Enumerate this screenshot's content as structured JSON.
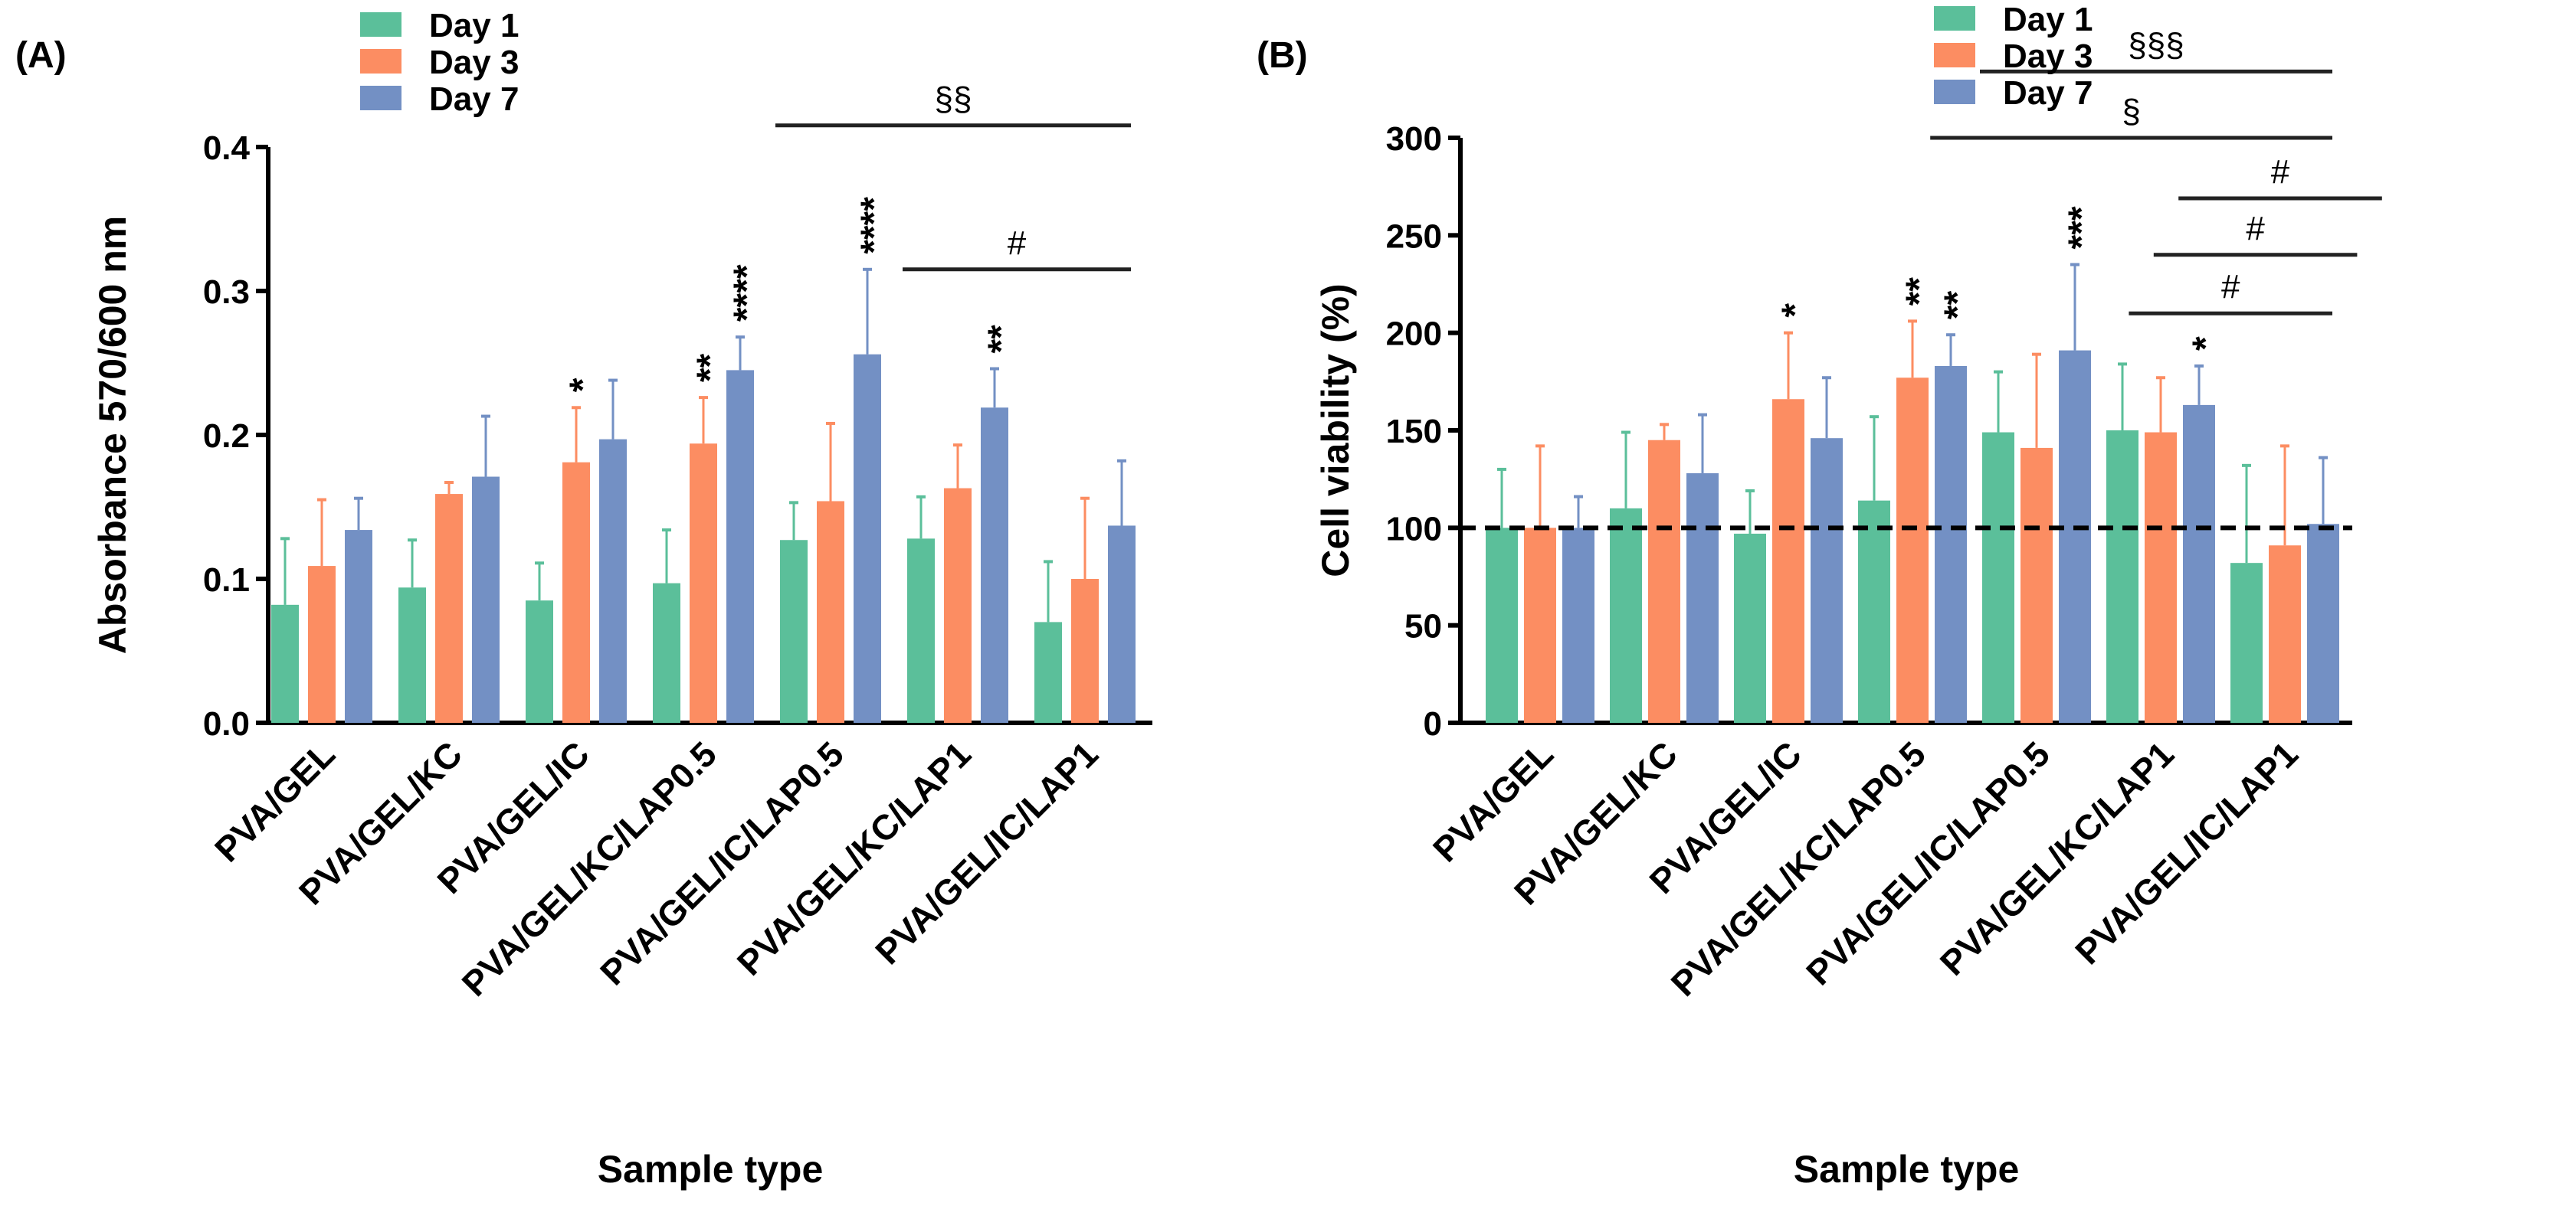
{
  "colors": {
    "Day 1": "#5bbf9a",
    "Day 3": "#fc8d62",
    "Day 7": "#7390c4"
  },
  "chart_data": [
    {
      "panel": "(A)",
      "type": "bar",
      "xlabel": "Sample type",
      "ylabel": "Absorbance 570/600 nm",
      "ylim": [
        0,
        0.4
      ],
      "yticks": [
        "0.0",
        "0.1",
        "0.2",
        "0.3",
        "0.4"
      ],
      "legend": "top-left",
      "categories": [
        "PVA/GEL",
        "PVA/GEL/KC",
        "PVA/GEL/IC",
        "PVA/GEL/KC/LAP0.5",
        "PVA/GEL/IC/LAP0.5",
        "PVA/GEL/KC/LAP1",
        "PVA/GEL/IC/LAP1"
      ],
      "series": [
        {
          "name": "Day 1",
          "values": [
            0.082,
            0.094,
            0.085,
            0.097,
            0.127,
            0.128,
            0.07
          ],
          "error_top": [
            0.128,
            0.127,
            0.111,
            0.134,
            0.153,
            0.157,
            0.112
          ]
        },
        {
          "name": "Day 3",
          "values": [
            0.109,
            0.159,
            0.181,
            0.194,
            0.154,
            0.163,
            0.1
          ],
          "error_top": [
            0.155,
            0.167,
            0.219,
            0.226,
            0.208,
            0.193,
            0.156
          ]
        },
        {
          "name": "Day 7",
          "values": [
            0.134,
            0.171,
            0.197,
            0.245,
            0.256,
            0.219,
            0.137
          ],
          "error_top": [
            0.156,
            0.213,
            0.238,
            0.268,
            0.315,
            0.246,
            0.182
          ]
        }
      ],
      "star_marks": [
        {
          "category": 2,
          "series": 1,
          "text": "*"
        },
        {
          "category": 3,
          "series": 1,
          "text": "**"
        },
        {
          "category": 3,
          "series": 2,
          "text": "****"
        },
        {
          "category": 4,
          "series": 2,
          "text": "****"
        },
        {
          "category": 5,
          "series": 2,
          "text": "**"
        }
      ],
      "brackets": [
        {
          "from": 4,
          "to": 6,
          "text": "§§",
          "level": 0.415
        },
        {
          "from": 5,
          "to": 6,
          "text": "#",
          "level": 0.315
        }
      ]
    },
    {
      "panel": "(B)",
      "type": "bar",
      "xlabel": "Sample type",
      "ylabel": "Cell viability (%)",
      "ylim": [
        0,
        300
      ],
      "yticks": [
        "0",
        "50",
        "100",
        "150",
        "200",
        "250",
        "300"
      ],
      "reference_line": 100,
      "legend": "top-left",
      "categories": [
        "PVA/GEL",
        "PVA/GEL/KC",
        "PVA/GEL/IC",
        "PVA/GEL/KC/LAP0.5",
        "PVA/GEL/IC/LAP0.5",
        "PVA/GEL/KC/LAP1",
        "PVA/GEL/IC/LAP1"
      ],
      "series": [
        {
          "name": "Day 1",
          "values": [
            100,
            110,
            97,
            114,
            149,
            150,
            82
          ],
          "error_top": [
            130,
            149,
            119,
            157,
            180,
            184,
            132
          ]
        },
        {
          "name": "Day 3",
          "values": [
            100,
            145,
            166,
            177,
            141,
            149,
            91
          ],
          "error_top": [
            142,
            153,
            200,
            206,
            189,
            177,
            142
          ]
        },
        {
          "name": "Day 7",
          "values": [
            100,
            128,
            146,
            183,
            191,
            163,
            102
          ],
          "error_top": [
            116,
            158,
            177,
            199,
            235,
            183,
            136
          ]
        }
      ],
      "star_marks": [
        {
          "category": 2,
          "series": 1,
          "text": "*"
        },
        {
          "category": 3,
          "series": 1,
          "text": "**"
        },
        {
          "category": 3,
          "series": 2,
          "text": "**"
        },
        {
          "category": 4,
          "series": 2,
          "text": "***"
        },
        {
          "category": 5,
          "series": 2,
          "text": "*"
        }
      ],
      "brackets": [
        {
          "from": 4,
          "to": 6,
          "text": "§§§",
          "level": 334
        },
        {
          "from": 3.6,
          "to": 6,
          "text": "§",
          "level": 300
        },
        {
          "from": 5.6,
          "to": 6.4,
          "text": "#",
          "level": 269
        },
        {
          "from": 5.4,
          "to": 6.2,
          "text": "#",
          "level": 240
        },
        {
          "from": 5.2,
          "to": 6,
          "text": "#",
          "level": 210
        }
      ]
    }
  ]
}
